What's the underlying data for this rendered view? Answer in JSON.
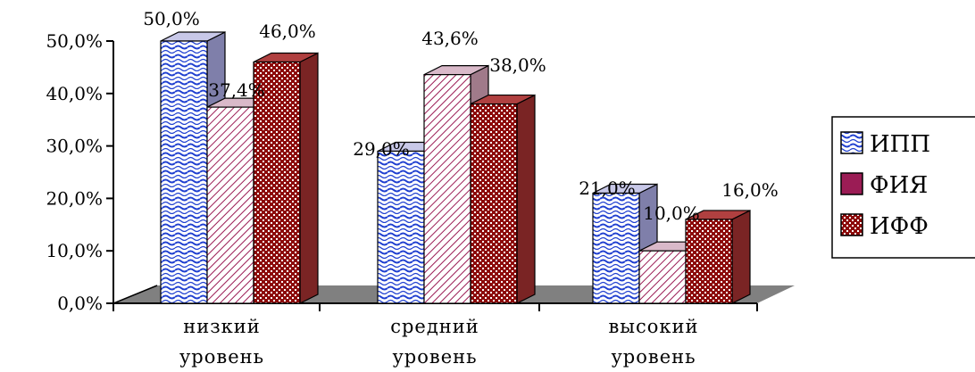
{
  "chart_data": {
    "type": "bar",
    "style": "3d-clustered-column",
    "categories": [
      [
        "низкий",
        "уровень"
      ],
      [
        "средний",
        "уровень"
      ],
      [
        "высокий",
        "уровень"
      ]
    ],
    "series": [
      {
        "name": "ИПП",
        "values": [
          50.0,
          29.0,
          21.0
        ],
        "labels": [
          "50,0%",
          "29,0%",
          "21,0%"
        ],
        "color": "#1f3fd0",
        "pattern": "wave"
      },
      {
        "name": "ФИЯ",
        "values": [
          37.4,
          43.6,
          10.0
        ],
        "labels": [
          "37,4%",
          "43,6%",
          "10,0%"
        ],
        "color": "#9b1c55",
        "pattern": "diagonal"
      },
      {
        "name": "ИФФ",
        "values": [
          46.0,
          38.0,
          16.0
        ],
        "labels": [
          "46,0%",
          "38,0%",
          "16,0%"
        ],
        "color": "#8c0a0a",
        "pattern": "check"
      }
    ],
    "yticks": [
      "0,0%",
      "10,0%",
      "20,0%",
      "30,0%",
      "40,0%",
      "50,0%"
    ],
    "ylim": [
      0,
      50
    ],
    "legend": "right",
    "floor_color": "#808080"
  }
}
